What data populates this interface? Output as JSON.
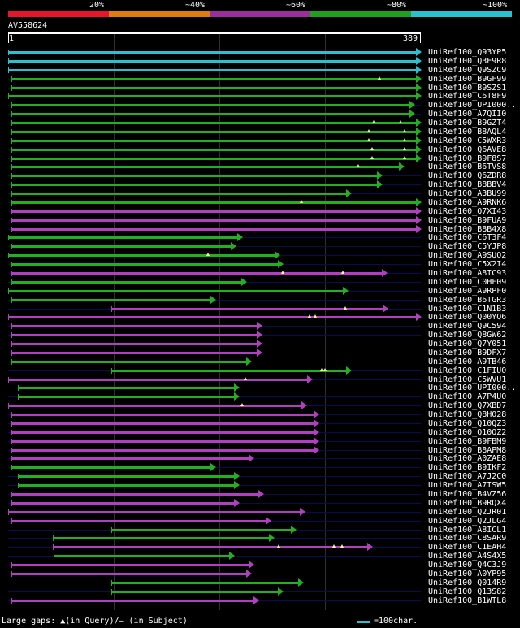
{
  "legend": {
    "labels": [
      "20%",
      "~40%",
      "~60%",
      "~80%",
      "~100%"
    ],
    "colors": [
      "#e8162b",
      "#e07a16",
      "#9c2d9c",
      "#1fa01f",
      "#2bbfcf"
    ]
  },
  "query": {
    "id": "AV558624",
    "start": "1",
    "end": "389",
    "length": 389
  },
  "colors": {
    "cyan": "#2bbfcf",
    "green": "#22b022",
    "purple": "#b040c0",
    "marker": "#ffff99",
    "baseline": "#0a0a55"
  },
  "hits": [
    {
      "label": "UniRef100_Q93YP5",
      "color": "cyan",
      "start": 1,
      "end": 389,
      "gaps": []
    },
    {
      "label": "UniRef100_Q3E9R8",
      "color": "cyan",
      "start": 1,
      "end": 389,
      "gaps": []
    },
    {
      "label": "UniRef100_Q9SZC9",
      "color": "cyan",
      "start": 1,
      "end": 389,
      "gaps": []
    },
    {
      "label": "UniRef100_B9GF99",
      "color": "green",
      "start": 4,
      "end": 389,
      "gaps": [
        350
      ]
    },
    {
      "label": "UniRef100_B9SZS1",
      "color": "green",
      "start": 4,
      "end": 389,
      "gaps": []
    },
    {
      "label": "UniRef100_C6T8F9",
      "color": "green",
      "start": 1,
      "end": 389,
      "gaps": []
    },
    {
      "label": "UniRef100_UPI000..",
      "color": "green",
      "start": 4,
      "end": 383,
      "gaps": []
    },
    {
      "label": "UniRef100_A7QII0",
      "color": "green",
      "start": 4,
      "end": 383,
      "gaps": []
    },
    {
      "label": "UniRef100_B9GZT4",
      "color": "green",
      "start": 4,
      "end": 389,
      "gaps": [
        345,
        370
      ]
    },
    {
      "label": "UniRef100_B8AQL4",
      "color": "green",
      "start": 4,
      "end": 389,
      "gaps": [
        340,
        374
      ]
    },
    {
      "label": "UniRef100_C5WXR3",
      "color": "green",
      "start": 4,
      "end": 389,
      "gaps": [
        340,
        374
      ]
    },
    {
      "label": "UniRef100_Q6AVE8",
      "color": "green",
      "start": 4,
      "end": 389,
      "gaps": [
        343,
        374
      ]
    },
    {
      "label": "UniRef100_B9F8S7",
      "color": "green",
      "start": 4,
      "end": 389,
      "gaps": [
        343,
        374
      ]
    },
    {
      "label": "UniRef100_B6TVS8",
      "color": "green",
      "start": 4,
      "end": 373,
      "gaps": [
        330
      ]
    },
    {
      "label": "UniRef100_Q6ZDR8",
      "color": "green",
      "start": 4,
      "end": 352,
      "gaps": []
    },
    {
      "label": "UniRef100_B8BBV4",
      "color": "green",
      "start": 4,
      "end": 352,
      "gaps": []
    },
    {
      "label": "UniRef100_A3BU99",
      "color": "green",
      "start": 4,
      "end": 323,
      "gaps": []
    },
    {
      "label": "UniRef100_A9RNK6",
      "color": "green",
      "start": 4,
      "end": 389,
      "gaps": [
        277
      ]
    },
    {
      "label": "UniRef100_Q7XI43",
      "color": "purple",
      "start": 4,
      "end": 389,
      "gaps": []
    },
    {
      "label": "UniRef100_B9FUA9",
      "color": "purple",
      "start": 4,
      "end": 389,
      "gaps": []
    },
    {
      "label": "UniRef100_B8B4X8",
      "color": "purple",
      "start": 4,
      "end": 389,
      "gaps": []
    },
    {
      "label": "UniRef100_C6T3F4",
      "color": "green",
      "start": 1,
      "end": 221,
      "gaps": []
    },
    {
      "label": "UniRef100_C5YJP8",
      "color": "green",
      "start": 4,
      "end": 215,
      "gaps": []
    },
    {
      "label": "UniRef100_A9SUQ2",
      "color": "green",
      "start": 1,
      "end": 256,
      "gaps": [
        189
      ]
    },
    {
      "label": "UniRef100_C5X2I4",
      "color": "green",
      "start": 4,
      "end": 259,
      "gaps": []
    },
    {
      "label": "UniRef100_A8IC93",
      "color": "purple",
      "start": 4,
      "end": 357,
      "gaps": [
        259,
        316
      ]
    },
    {
      "label": "UniRef100_C0HF09",
      "color": "green",
      "start": 4,
      "end": 225,
      "gaps": []
    },
    {
      "label": "UniRef100_A9RPF0",
      "color": "green",
      "start": 1,
      "end": 320,
      "gaps": []
    },
    {
      "label": "UniRef100_B6TGR3",
      "color": "green",
      "start": 4,
      "end": 196,
      "gaps": []
    },
    {
      "label": "UniRef100_C1N1B3",
      "color": "purple",
      "start": 98,
      "end": 358,
      "gaps": [
        318
      ]
    },
    {
      "label": "UniRef100_Q00YQ6",
      "color": "purple",
      "start": 1,
      "end": 389,
      "gaps": [
        284,
        290
      ]
    },
    {
      "label": "UniRef100_Q9C594",
      "color": "purple",
      "start": 4,
      "end": 239,
      "gaps": []
    },
    {
      "label": "UniRef100_Q8GW62",
      "color": "purple",
      "start": 4,
      "end": 239,
      "gaps": []
    },
    {
      "label": "UniRef100_Q7Y051",
      "color": "purple",
      "start": 4,
      "end": 239,
      "gaps": []
    },
    {
      "label": "UniRef100_B9DFX7",
      "color": "purple",
      "start": 4,
      "end": 239,
      "gaps": []
    },
    {
      "label": "UniRef100_A9TB46",
      "color": "green",
      "start": 4,
      "end": 229,
      "gaps": []
    },
    {
      "label": "UniRef100_C1FIU0",
      "color": "green",
      "start": 98,
      "end": 323,
      "gaps": [
        296,
        299
      ]
    },
    {
      "label": "UniRef100_C5WVU1",
      "color": "purple",
      "start": 1,
      "end": 287,
      "gaps": [
        224
      ]
    },
    {
      "label": "UniRef100_UPI000..",
      "color": "green",
      "start": 10,
      "end": 218,
      "gaps": []
    },
    {
      "label": "UniRef100_A7P4U0",
      "color": "green",
      "start": 10,
      "end": 218,
      "gaps": []
    },
    {
      "label": "UniRef100_Q7XBD7",
      "color": "purple",
      "start": 1,
      "end": 281,
      "gaps": [
        221
      ]
    },
    {
      "label": "UniRef100_Q8H028",
      "color": "purple",
      "start": 4,
      "end": 293,
      "gaps": []
    },
    {
      "label": "UniRef100_Q10QZ3",
      "color": "purple",
      "start": 4,
      "end": 293,
      "gaps": []
    },
    {
      "label": "UniRef100_Q10QZ2",
      "color": "purple",
      "start": 4,
      "end": 293,
      "gaps": []
    },
    {
      "label": "UniRef100_B9FBM9",
      "color": "purple",
      "start": 4,
      "end": 293,
      "gaps": []
    },
    {
      "label": "UniRef100_B8APM8",
      "color": "purple",
      "start": 4,
      "end": 293,
      "gaps": []
    },
    {
      "label": "UniRef100_A0ZAE8",
      "color": "purple",
      "start": 4,
      "end": 232,
      "gaps": []
    },
    {
      "label": "UniRef100_B9IKF2",
      "color": "green",
      "start": 4,
      "end": 196,
      "gaps": []
    },
    {
      "label": "UniRef100_A7J2C0",
      "color": "green",
      "start": 10,
      "end": 218,
      "gaps": []
    },
    {
      "label": "UniRef100_A7ISW5",
      "color": "green",
      "start": 10,
      "end": 218,
      "gaps": []
    },
    {
      "label": "UniRef100_B4VZ56",
      "color": "purple",
      "start": 4,
      "end": 241,
      "gaps": []
    },
    {
      "label": "UniRef100_B9RQX4",
      "color": "purple",
      "start": 4,
      "end": 218,
      "gaps": []
    },
    {
      "label": "UniRef100_Q2JR01",
      "color": "purple",
      "start": 1,
      "end": 280,
      "gaps": []
    },
    {
      "label": "UniRef100_Q2JLG4",
      "color": "purple",
      "start": 4,
      "end": 248,
      "gaps": []
    },
    {
      "label": "UniRef100_A8ICL1",
      "color": "green",
      "start": 98,
      "end": 271,
      "gaps": []
    },
    {
      "label": "UniRef100_C8SAR9",
      "color": "green",
      "start": 43,
      "end": 251,
      "gaps": []
    },
    {
      "label": "UniRef100_C1EAH4",
      "color": "purple",
      "start": 43,
      "end": 343,
      "gaps": [
        255,
        307,
        315
      ]
    },
    {
      "label": "UniRef100_A4S4X5",
      "color": "green",
      "start": 44,
      "end": 213,
      "gaps": []
    },
    {
      "label": "UniRef100_Q4C3J9",
      "color": "purple",
      "start": 4,
      "end": 232,
      "gaps": []
    },
    {
      "label": "UniRef100_A0YP95",
      "color": "purple",
      "start": 4,
      "end": 229,
      "gaps": []
    },
    {
      "label": "UniRef100_Q014R9",
      "color": "green",
      "start": 98,
      "end": 278,
      "gaps": []
    },
    {
      "label": "UniRef100_Q13S82",
      "color": "green",
      "start": 98,
      "end": 259,
      "gaps": []
    },
    {
      "label": "UniRef100_B1WTL8",
      "color": "purple",
      "start": 4,
      "end": 236,
      "gaps": []
    }
  ],
  "footer": {
    "large_gaps": "Large gaps: ▲(in Query)/– (in Subject)",
    "scale": "=100char."
  }
}
